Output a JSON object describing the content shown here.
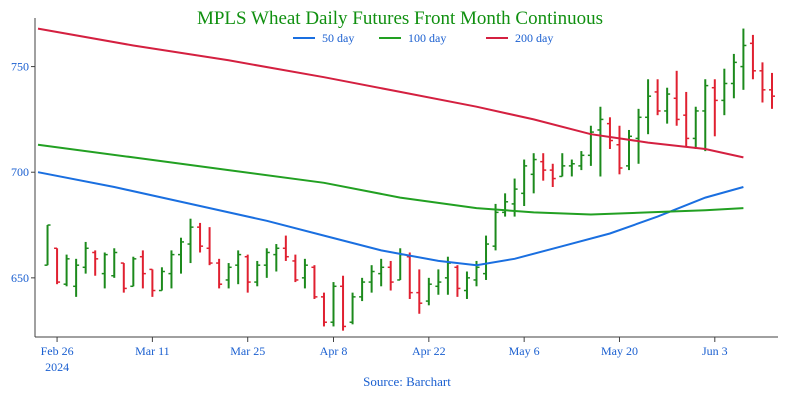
{
  "chart_data": {
    "type": "ohlc",
    "title": "MPLS Wheat Daily Futures Front Month Continuous",
    "source": "Source: Barchart",
    "colors": {
      "up": "#1c8a1c",
      "down": "#e02030",
      "ma50": "#1a6fe0",
      "ma100": "#22a022",
      "ma200": "#d42040",
      "axis": "#404040",
      "text": "#1a5fd0",
      "title": "#109010"
    },
    "legend": [
      {
        "label": "50 day",
        "color": "#1a6fe0"
      },
      {
        "label": "100 day",
        "color": "#22a022"
      },
      {
        "label": "200 day",
        "color": "#d42040"
      }
    ],
    "ylim": [
      622,
      773
    ],
    "yticks": [
      650,
      700,
      750
    ],
    "xlim": [
      0,
      77
    ],
    "xticks": [
      {
        "index": 2,
        "label": "Feb 26",
        "sub": "2024"
      },
      {
        "index": 12,
        "label": "Mar 11",
        "sub": ""
      },
      {
        "index": 22,
        "label": "Mar 25",
        "sub": ""
      },
      {
        "index": 31,
        "label": "Apr 8",
        "sub": ""
      },
      {
        "index": 41,
        "label": "Apr 22",
        "sub": ""
      },
      {
        "index": 51,
        "label": "May 6",
        "sub": ""
      },
      {
        "index": 61,
        "label": "May 20",
        "sub": ""
      },
      {
        "index": 71,
        "label": "Jun 3",
        "sub": ""
      }
    ],
    "bars": [
      [
        1,
        675,
        656,
        656,
        675
      ],
      [
        2,
        664,
        647,
        664,
        648
      ],
      [
        3,
        661,
        646,
        647,
        659
      ],
      [
        4,
        659,
        641,
        646,
        656
      ],
      [
        5,
        667,
        652,
        655,
        664
      ],
      [
        6,
        663,
        651,
        662,
        659
      ],
      [
        7,
        662,
        645,
        652,
        661
      ],
      [
        8,
        664,
        650,
        651,
        662
      ],
      [
        9,
        657,
        643,
        657,
        645
      ],
      [
        10,
        660,
        646,
        646,
        659
      ],
      [
        11,
        663,
        645,
        660,
        652
      ],
      [
        12,
        654,
        641,
        654,
        644
      ],
      [
        13,
        655,
        644,
        644,
        653
      ],
      [
        14,
        663,
        645,
        652,
        661
      ],
      [
        15,
        669,
        652,
        661,
        667
      ],
      [
        16,
        678,
        657,
        666,
        674
      ],
      [
        17,
        676,
        662,
        674,
        665
      ],
      [
        18,
        674,
        656,
        664,
        657
      ],
      [
        19,
        659,
        645,
        657,
        647
      ],
      [
        20,
        657,
        645,
        649,
        655
      ],
      [
        21,
        663,
        647,
        656,
        661
      ],
      [
        22,
        661,
        643,
        660,
        648
      ],
      [
        23,
        658,
        646,
        648,
        656
      ],
      [
        24,
        664,
        650,
        656,
        662
      ],
      [
        25,
        666,
        653,
        661,
        664
      ],
      [
        26,
        670,
        658,
        664,
        660
      ],
      [
        27,
        661,
        648,
        658,
        649
      ],
      [
        28,
        659,
        645,
        650,
        656
      ],
      [
        29,
        656,
        640,
        655,
        641
      ],
      [
        30,
        643,
        627,
        641,
        629
      ],
      [
        31,
        648,
        627,
        629,
        646
      ],
      [
        32,
        651,
        625,
        646,
        627
      ],
      [
        33,
        643,
        628,
        629,
        641
      ],
      [
        34,
        650,
        639,
        641,
        648
      ],
      [
        35,
        656,
        643,
        648,
        653
      ],
      [
        36,
        659,
        646,
        652,
        655
      ],
      [
        37,
        658,
        644,
        655,
        648
      ],
      [
        38,
        664,
        649,
        649,
        661
      ],
      [
        39,
        662,
        640,
        660,
        643
      ],
      [
        40,
        654,
        633,
        643,
        638
      ],
      [
        41,
        650,
        637,
        639,
        647
      ],
      [
        42,
        654,
        642,
        646,
        648
      ],
      [
        43,
        660,
        642,
        650,
        657
      ],
      [
        44,
        656,
        641,
        655,
        645
      ],
      [
        45,
        653,
        640,
        644,
        650
      ],
      [
        46,
        658,
        646,
        649,
        655
      ],
      [
        47,
        670,
        649,
        652,
        666
      ],
      [
        48,
        685,
        663,
        665,
        681
      ],
      [
        49,
        690,
        679,
        681,
        686
      ],
      [
        50,
        697,
        679,
        685,
        692
      ],
      [
        51,
        706,
        684,
        690,
        703
      ],
      [
        52,
        709,
        690,
        699,
        706
      ],
      [
        53,
        709,
        696,
        705,
        701
      ],
      [
        54,
        704,
        693,
        701,
        697
      ],
      [
        55,
        709,
        698,
        698,
        703
      ],
      [
        56,
        706,
        698,
        703,
        704
      ],
      [
        57,
        710,
        701,
        703,
        708
      ],
      [
        58,
        722,
        703,
        708,
        719
      ],
      [
        59,
        731,
        698,
        720,
        725
      ],
      [
        60,
        726,
        711,
        723,
        715
      ],
      [
        61,
        722,
        699,
        713,
        702
      ],
      [
        62,
        720,
        701,
        703,
        717
      ],
      [
        63,
        730,
        704,
        716,
        726
      ],
      [
        64,
        744,
        718,
        726,
        736
      ],
      [
        65,
        744,
        727,
        738,
        729
      ],
      [
        66,
        740,
        723,
        729,
        737
      ],
      [
        67,
        748,
        722,
        735,
        725
      ],
      [
        68,
        738,
        712,
        727,
        716
      ],
      [
        69,
        731,
        711,
        716,
        729
      ],
      [
        70,
        744,
        710,
        729,
        741
      ],
      [
        71,
        744,
        717,
        740,
        734
      ],
      [
        72,
        749,
        727,
        734,
        742
      ],
      [
        73,
        756,
        735,
        742,
        752
      ],
      [
        74,
        768,
        739,
        750,
        760
      ],
      [
        75,
        765,
        744,
        761,
        748
      ],
      [
        76,
        752,
        733,
        748,
        739
      ],
      [
        77,
        747,
        730,
        739,
        736
      ]
    ],
    "series": [
      {
        "name": "50 day",
        "points": [
          [
            0,
            700
          ],
          [
            8,
            693
          ],
          [
            16,
            685
          ],
          [
            24,
            677
          ],
          [
            30,
            670
          ],
          [
            36,
            663
          ],
          [
            42,
            658
          ],
          [
            46,
            656
          ],
          [
            50,
            659
          ],
          [
            55,
            665
          ],
          [
            60,
            671
          ],
          [
            65,
            679
          ],
          [
            70,
            688
          ],
          [
            74,
            693
          ]
        ]
      },
      {
        "name": "100 day",
        "points": [
          [
            0,
            713
          ],
          [
            10,
            707
          ],
          [
            20,
            701
          ],
          [
            30,
            695
          ],
          [
            38,
            688
          ],
          [
            46,
            683
          ],
          [
            52,
            681
          ],
          [
            58,
            680
          ],
          [
            64,
            681
          ],
          [
            70,
            682
          ],
          [
            74,
            683
          ]
        ]
      },
      {
        "name": "200 day",
        "points": [
          [
            0,
            768
          ],
          [
            10,
            760
          ],
          [
            20,
            753
          ],
          [
            30,
            745
          ],
          [
            38,
            738
          ],
          [
            46,
            731
          ],
          [
            52,
            725
          ],
          [
            58,
            718
          ],
          [
            64,
            714
          ],
          [
            70,
            711
          ],
          [
            74,
            707
          ]
        ]
      }
    ]
  }
}
